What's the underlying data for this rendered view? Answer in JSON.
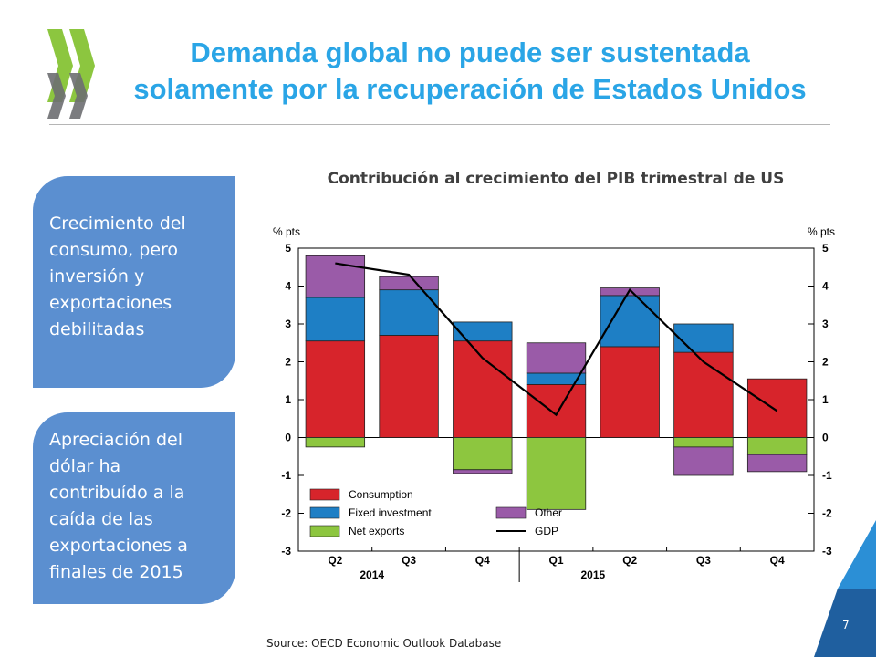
{
  "slide": {
    "title": "Demanda global no puede ser sustentada solamente por la recuperación de Estados Unidos",
    "chart_title": "Contribución al crecimiento del PIB trimestral de US",
    "bullet1": "Crecimiento del consumo, pero inversión y exportaciones debilitadas",
    "bullet2": "Apreciación del dólar ha contribuído a la caída de las exportaciones a finales de 2015",
    "source": "Source: OECD Economic Outlook Database",
    "page_number": "7"
  },
  "colors": {
    "title": "#2aa5e6",
    "bubble": "#5b8fd0",
    "logo_green": "#8cc63f",
    "logo_gray": "#6d6e71",
    "corner": "#1f5f9f"
  },
  "chart_data": {
    "type": "bar",
    "stacked": true,
    "categories": [
      "Q2",
      "Q3",
      "Q4",
      "Q1",
      "Q2",
      "Q3",
      "Q4"
    ],
    "year_labels": [
      {
        "label": "2014",
        "categories": [
          "Q2",
          "Q3",
          "Q4"
        ]
      },
      {
        "label": "2015",
        "categories": [
          "Q1",
          "Q2",
          "Q3",
          "Q4"
        ]
      }
    ],
    "y_axis_label_left": "% pts",
    "y_axis_label_right": "% pts",
    "ylim": [
      -3,
      5
    ],
    "yticks": [
      5,
      4,
      3,
      2,
      1,
      0,
      -1,
      -2,
      -3
    ],
    "series": [
      {
        "name": "Consumption",
        "color": "#d7242b",
        "values": [
          2.55,
          2.7,
          2.55,
          1.4,
          2.4,
          2.25,
          1.55
        ]
      },
      {
        "name": "Fixed investment",
        "color": "#1e7fc5",
        "values": [
          1.15,
          1.2,
          0.5,
          0.3,
          1.35,
          0.75,
          0.0
        ]
      },
      {
        "name": "Net exports",
        "color": "#8dc63f",
        "values": [
          -0.25,
          0.0,
          -0.85,
          -1.9,
          0.0,
          -0.25,
          -0.45
        ]
      },
      {
        "name": "Other",
        "color": "#9a5ba8",
        "values": [
          1.1,
          0.35,
          -0.1,
          0.8,
          0.2,
          -0.75,
          -0.45
        ]
      }
    ],
    "positive_order": [
      "Consumption",
      "Fixed investment",
      "Net exports",
      "Other"
    ],
    "negative_order": [
      "Net exports",
      "Other"
    ],
    "line": {
      "name": "GDP",
      "color": "#000000",
      "values": [
        4.6,
        4.3,
        2.1,
        0.6,
        3.9,
        2.0,
        0.7
      ]
    },
    "legend": {
      "placement": "bottom-left",
      "items": [
        {
          "name": "Consumption",
          "kind": "bar"
        },
        {
          "name": "Fixed investment",
          "kind": "bar"
        },
        {
          "name": "Net exports",
          "kind": "bar"
        },
        {
          "name": "Other",
          "kind": "bar"
        },
        {
          "name": "GDP",
          "kind": "line"
        }
      ]
    }
  }
}
